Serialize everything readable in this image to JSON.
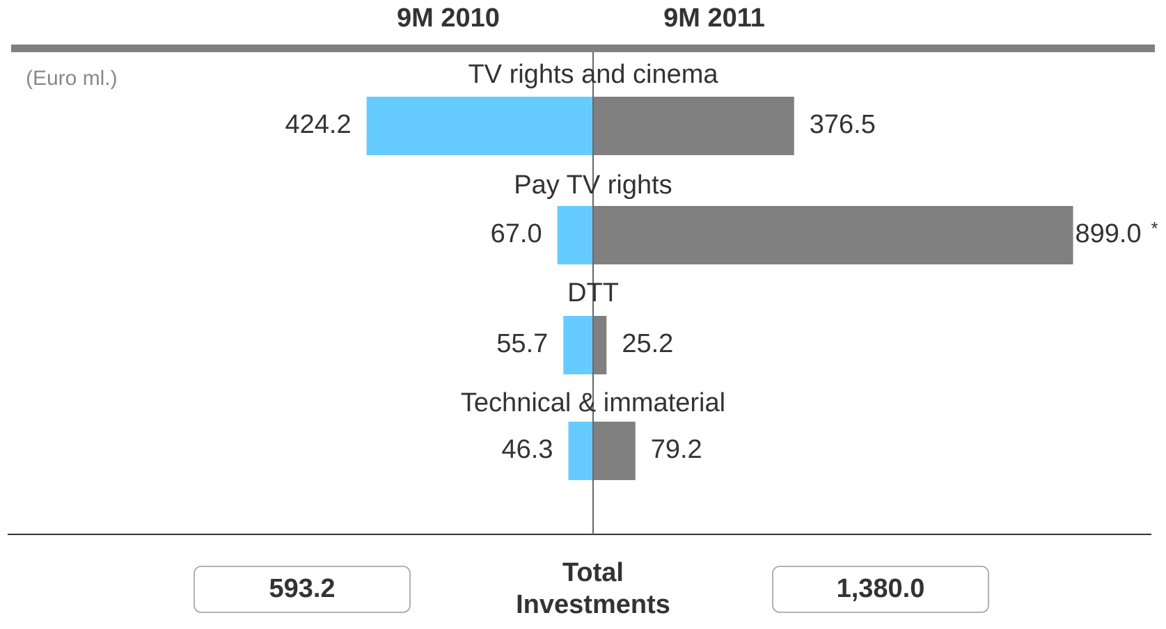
{
  "chart_data": {
    "type": "butterfly_bar",
    "unit_label": "(Euro ml.)",
    "categories": [
      "TV rights and cinema",
      "Pay TV rights",
      "DTT",
      "Technical & immaterial"
    ],
    "series": [
      {
        "name": "9M 2010",
        "color": "#66ccff",
        "values": [
          424.2,
          67.0,
          55.7,
          46.3
        ],
        "value_labels": [
          "424.2",
          "67.0",
          "55.7",
          "46.3"
        ]
      },
      {
        "name": "9M 2011",
        "color": "#808080",
        "values": [
          376.5,
          899.0,
          25.2,
          79.2
        ],
        "value_labels": [
          "376.5",
          "899.0",
          "25.2",
          "79.2"
        ]
      }
    ],
    "annotation": "*",
    "totals": {
      "label": "Total Investments",
      "values": [
        593.2,
        1380.0
      ],
      "value_labels": [
        "593.2",
        "1,380.0"
      ]
    }
  }
}
